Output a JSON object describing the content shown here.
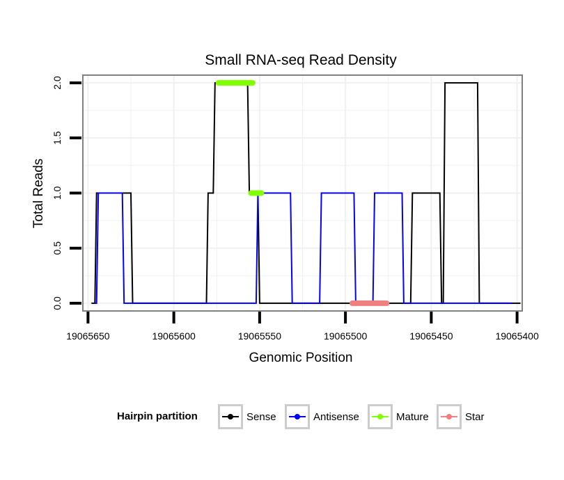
{
  "chart_data": {
    "type": "line",
    "title": "Small RNA-seq Read Density",
    "xlabel": "Genomic Position",
    "ylabel": "Total Reads",
    "x_reversed": true,
    "xlim": [
      19065653,
      19065397
    ],
    "ylim": [
      -0.07,
      2.07
    ],
    "x_ticks": [
      19065650,
      19065600,
      19065550,
      19065500,
      19065450,
      19065400
    ],
    "x_tick_labels": [
      "19065650",
      "19065600",
      "19065550",
      "19065500",
      "19065450",
      "19065400"
    ],
    "y_ticks": [
      0.0,
      0.5,
      1.0,
      1.5,
      2.0
    ],
    "y_tick_labels": [
      "0.0",
      "0.5",
      "1.0",
      "1.5",
      "2.0"
    ],
    "grid": true,
    "legend": {
      "title": "Hairpin partition",
      "position": "bottom",
      "entries": [
        {
          "name": "Sense",
          "color": "#000000"
        },
        {
          "name": "Antisense",
          "color": "#0000ff"
        },
        {
          "name": "Mature",
          "color": "#7fff00"
        },
        {
          "name": "Star",
          "color": "#f08080"
        }
      ]
    },
    "series": [
      {
        "name": "Sense",
        "color": "#000000",
        "x": [
          19065648,
          19065646,
          19065645,
          19065625,
          19065624,
          19065623,
          19065581,
          19065580,
          19065577,
          19065576,
          19065575,
          19065557,
          19065556,
          19065551,
          19065550,
          19065462,
          19065461,
          19065445,
          19065444,
          19065443,
          19065442,
          19065441,
          19065423,
          19065422,
          19065404,
          19065403,
          19065398
        ],
        "y": [
          0,
          0,
          1,
          1,
          0,
          0,
          0,
          1,
          1,
          2,
          2,
          2,
          1,
          1,
          0,
          0,
          1,
          1,
          0,
          0,
          2,
          2,
          2,
          0,
          0,
          0,
          0
        ]
      },
      {
        "name": "Antisense",
        "color": "#0000ff",
        "x": [
          19065646,
          19065645,
          19065644,
          19065630,
          19065629,
          19065552,
          19065551,
          19065532,
          19065531,
          19065515,
          19065514,
          19065495,
          19065494,
          19065484,
          19065483,
          19065467,
          19065466,
          19065403
        ],
        "y": [
          0,
          0,
          1,
          1,
          0,
          0,
          1,
          1,
          0,
          0,
          1,
          1,
          0,
          0,
          1,
          1,
          0,
          0
        ]
      },
      {
        "name": "Mature",
        "color": "#7fff00",
        "segments": [
          {
            "x": [
              19065574,
              19065554
            ],
            "y": [
              2,
              2
            ]
          },
          {
            "x": [
              19065555,
              19065549
            ],
            "y": [
              1,
              1
            ]
          }
        ]
      },
      {
        "name": "Star",
        "color": "#f08080",
        "segments": [
          {
            "x": [
              19065496,
              19065476
            ],
            "y": [
              0,
              0
            ]
          }
        ]
      }
    ]
  },
  "colors": {
    "panel_border": "#808080",
    "grid": "#f0f0f0",
    "axis_ticks": "#000000"
  }
}
